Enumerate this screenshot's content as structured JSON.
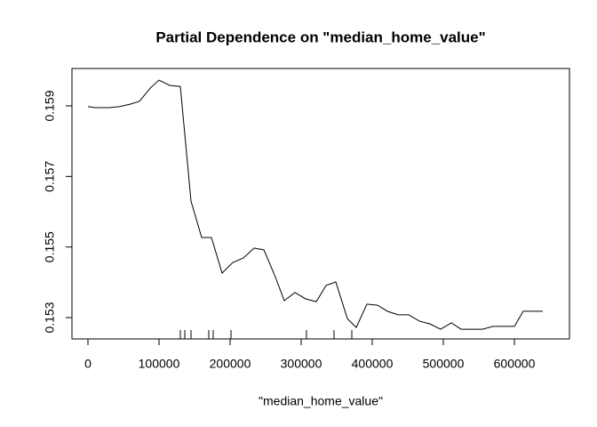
{
  "chart_data": {
    "type": "line",
    "title": "Partial Dependence on \"median_home_value\"",
    "x_label": "\"median_home_value\"",
    "x": [
      0,
      10000,
      30000,
      45000,
      60000,
      72500,
      87500,
      100000,
      115000,
      130000,
      145000,
      160000,
      173750,
      188750,
      203750,
      218750,
      233750,
      247500,
      262500,
      276250,
      291250,
      306250,
      321250,
      335000,
      348750,
      365000,
      377500,
      392500,
      407500,
      421250,
      436250,
      451250,
      466250,
      481250,
      496250,
      511250,
      525000,
      540000,
      555000,
      570000,
      585000,
      600000,
      612500,
      626250,
      640000
    ],
    "series": [
      {
        "color": "#000000",
        "values": [
          0.15898,
          0.15895,
          0.15895,
          0.15898,
          0.15905,
          0.15913,
          0.1595,
          0.15973,
          0.15958,
          0.15955,
          0.1563,
          0.15527,
          0.15527,
          0.15426,
          0.15456,
          0.15469,
          0.15497,
          0.15492,
          0.15421,
          0.15348,
          0.15371,
          0.15353,
          0.15345,
          0.15391,
          0.15401,
          0.15297,
          0.15272,
          0.15338,
          0.15335,
          0.15318,
          0.15308,
          0.15308,
          0.1529,
          0.15282,
          0.15267,
          0.15285,
          0.15267,
          0.15267,
          0.15267,
          0.15275,
          0.15275,
          0.15275,
          0.15318,
          0.15318,
          0.15318
        ]
      }
    ],
    "rug": [
      130000,
      136250,
      145000,
      170000,
      176250,
      201250,
      307500,
      346250,
      371250
    ],
    "xlim": [
      -22500,
      677500
    ],
    "ylim": [
      0.152395,
      0.160059
    ],
    "xticks": [
      0,
      100000,
      200000,
      300000,
      400000,
      500000,
      600000
    ],
    "yticks": [
      0.153,
      0.155,
      0.157,
      0.159
    ]
  }
}
